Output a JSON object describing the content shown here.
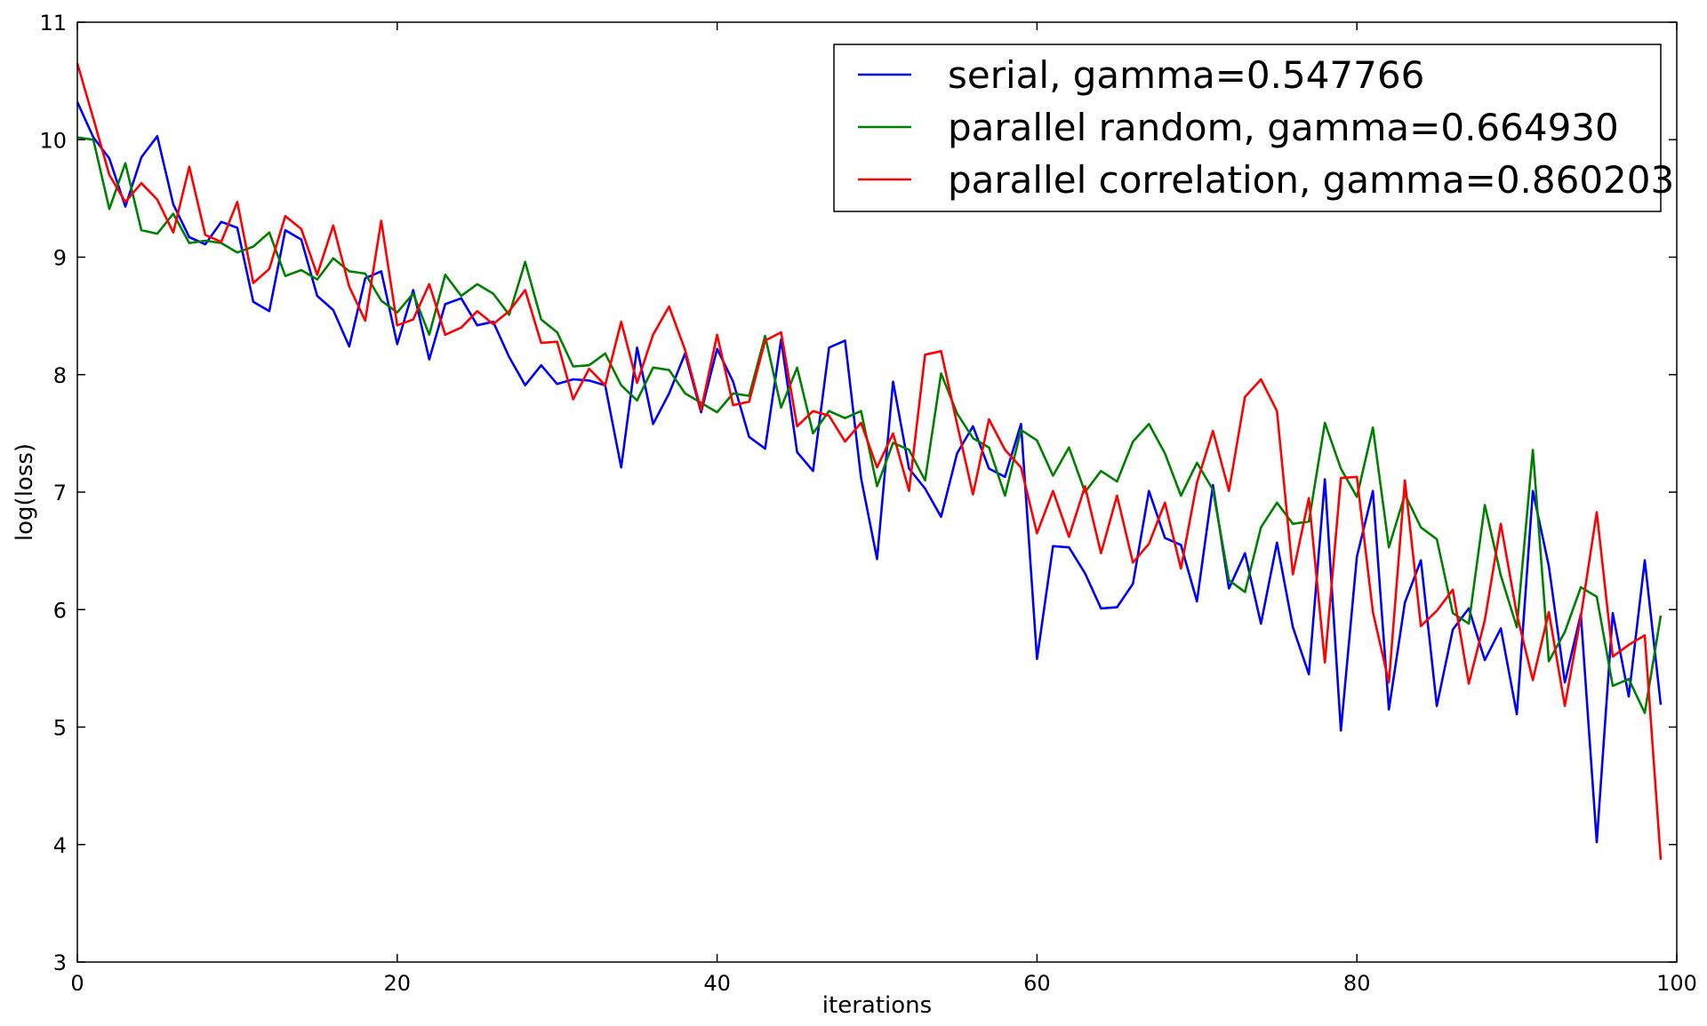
{
  "chart_data": {
    "type": "line",
    "title": "",
    "xlabel": "iterations",
    "ylabel": "log(loss)",
    "xlim": [
      0,
      100
    ],
    "ylim": [
      3,
      11
    ],
    "xticks": [
      0,
      20,
      40,
      60,
      80,
      100
    ],
    "yticks": [
      3,
      4,
      5,
      6,
      7,
      8,
      9,
      10,
      11
    ],
    "grid": false,
    "legend_position": "top-right",
    "x": [
      0,
      1,
      2,
      3,
      4,
      5,
      6,
      7,
      8,
      9,
      10,
      11,
      12,
      13,
      14,
      15,
      16,
      17,
      18,
      19,
      20,
      21,
      22,
      23,
      24,
      25,
      26,
      27,
      28,
      29,
      30,
      31,
      32,
      33,
      34,
      35,
      36,
      37,
      38,
      39,
      40,
      41,
      42,
      43,
      44,
      45,
      46,
      47,
      48,
      49,
      50,
      51,
      52,
      53,
      54,
      55,
      56,
      57,
      58,
      59,
      60,
      61,
      62,
      63,
      64,
      65,
      66,
      67,
      68,
      69,
      70,
      71,
      72,
      73,
      74,
      75,
      76,
      77,
      78,
      79,
      80,
      81,
      82,
      83,
      84,
      85,
      86,
      87,
      88,
      89,
      90,
      91,
      92,
      93,
      94,
      95,
      96,
      97,
      98,
      99
    ],
    "series": [
      {
        "name": "serial, gamma=0.547766",
        "color": "#0000ff",
        "values": [
          10.32,
          10.02,
          9.84,
          9.43,
          9.85,
          10.03,
          9.45,
          9.17,
          9.11,
          9.3,
          9.25,
          8.62,
          8.54,
          9.23,
          9.15,
          8.67,
          8.55,
          8.24,
          8.82,
          8.88,
          8.26,
          8.72,
          8.13,
          8.6,
          8.65,
          8.42,
          8.45,
          8.15,
          7.91,
          8.08,
          7.92,
          7.96,
          7.95,
          7.91,
          7.21,
          8.23,
          7.58,
          7.84,
          8.18,
          7.68,
          8.22,
          7.94,
          7.47,
          7.37,
          8.3,
          7.34,
          7.18,
          8.23,
          8.29,
          7.12,
          6.43,
          7.94,
          7.2,
          7.03,
          6.79,
          7.33,
          7.56,
          7.2,
          7.13,
          7.58,
          5.58,
          6.54,
          6.53,
          6.31,
          6.01,
          6.02,
          6.22,
          7.01,
          6.61,
          6.55,
          6.07,
          7.06,
          6.18,
          6.48,
          5.88,
          6.57,
          5.85,
          5.45,
          7.11,
          4.97,
          6.45,
          7.01,
          5.15,
          6.06,
          6.42,
          5.18,
          5.83,
          6.01,
          5.57,
          5.84,
          5.11,
          7.01,
          6.37,
          5.38,
          5.96,
          4.02,
          5.97,
          5.26,
          6.42,
          5.19
        ]
      },
      {
        "name": "parallel random, gamma=0.664930",
        "color": "#008000",
        "values": [
          10.02,
          10.0,
          9.41,
          9.8,
          9.23,
          9.2,
          9.37,
          9.12,
          9.14,
          9.12,
          9.04,
          9.09,
          9.21,
          8.84,
          8.89,
          8.81,
          8.99,
          8.88,
          8.86,
          8.63,
          8.53,
          8.69,
          8.34,
          8.85,
          8.67,
          8.77,
          8.69,
          8.51,
          8.96,
          8.47,
          8.36,
          8.07,
          8.08,
          8.18,
          7.91,
          7.78,
          8.06,
          8.04,
          7.84,
          7.76,
          7.68,
          7.84,
          7.82,
          8.33,
          7.72,
          8.06,
          7.5,
          7.69,
          7.63,
          7.69,
          7.05,
          7.42,
          7.36,
          7.1,
          8.01,
          7.67,
          7.46,
          7.38,
          6.97,
          7.53,
          7.44,
          7.14,
          7.38,
          7.0,
          7.18,
          7.09,
          7.43,
          7.58,
          7.33,
          6.97,
          7.25,
          7.02,
          6.25,
          6.15,
          6.7,
          6.91,
          6.73,
          6.75,
          7.59,
          7.2,
          6.96,
          7.55,
          6.53,
          6.98,
          6.7,
          6.6,
          5.97,
          5.88,
          6.89,
          6.29,
          5.85,
          7.36,
          5.56,
          5.81,
          6.19,
          6.11,
          5.35,
          5.41,
          5.12,
          5.95
        ]
      },
      {
        "name": "parallel correlation, gamma=0.860203",
        "color": "#ff0000",
        "values": [
          10.65,
          10.18,
          9.7,
          9.47,
          9.63,
          9.49,
          9.21,
          9.77,
          9.19,
          9.13,
          9.47,
          8.78,
          8.9,
          9.35,
          9.24,
          8.85,
          9.27,
          8.75,
          8.46,
          9.31,
          8.42,
          8.47,
          8.77,
          8.34,
          8.4,
          8.54,
          8.43,
          8.54,
          8.72,
          8.27,
          8.28,
          7.79,
          8.05,
          7.91,
          8.45,
          7.93,
          8.34,
          8.58,
          8.21,
          7.7,
          8.34,
          7.74,
          7.77,
          8.29,
          8.36,
          7.56,
          7.69,
          7.65,
          7.43,
          7.59,
          7.21,
          7.5,
          7.01,
          8.17,
          8.2,
          7.58,
          6.98,
          7.62,
          7.36,
          7.21,
          6.65,
          7.01,
          6.62,
          7.05,
          6.48,
          6.97,
          6.4,
          6.56,
          6.91,
          6.35,
          7.08,
          7.52,
          7.01,
          7.81,
          7.96,
          7.69,
          6.3,
          6.95,
          5.55,
          7.12,
          7.13,
          5.98,
          5.38,
          7.1,
          5.86,
          5.99,
          6.17,
          5.37,
          5.91,
          6.73,
          5.96,
          5.4,
          5.98,
          5.18,
          5.94,
          6.83,
          5.6,
          5.7,
          5.78,
          3.87
        ]
      }
    ]
  }
}
